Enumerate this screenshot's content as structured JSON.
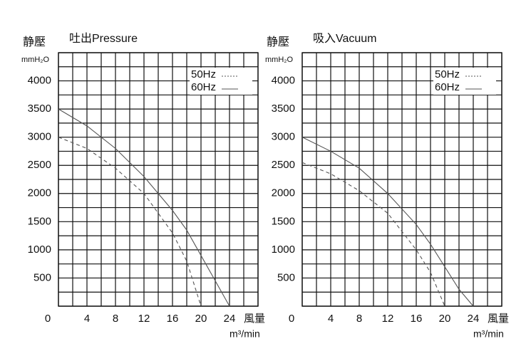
{
  "chart_data": [
    {
      "type": "line",
      "title": "吐出Pressure",
      "y_label": "静壓",
      "y_unit": "mmH₂O",
      "x_label": "風量",
      "x_unit": "m³/min",
      "x": [
        0,
        4,
        8,
        12,
        16,
        18,
        20,
        22,
        24
      ],
      "series": [
        {
          "name": "50Hz",
          "color": "#555555",
          "linestyle": "dashed",
          "values": [
            3000,
            2800,
            2450,
            2000,
            1300,
            800,
            0,
            null,
            null
          ]
        },
        {
          "name": "60Hz",
          "color": "#555555",
          "linestyle": "solid",
          "values": [
            3500,
            3200,
            2800,
            2300,
            1700,
            1350,
            900,
            450,
            0
          ]
        }
      ],
      "xlim": [
        0,
        28
      ],
      "ylim": [
        0,
        4500
      ],
      "xticks": [
        4,
        8,
        12,
        16,
        20,
        24
      ],
      "yticks": [
        0,
        500,
        1000,
        1500,
        2000,
        2500,
        3000,
        3500,
        4000
      ],
      "grid": true,
      "legend": "upper right"
    },
    {
      "type": "line",
      "title": "吸入Vacuum",
      "y_label": "静壓",
      "y_unit": "mmH₂O",
      "x_label": "風量",
      "x_unit": "m³/min",
      "x": [
        0,
        4,
        8,
        12,
        16,
        18,
        20,
        22,
        24
      ],
      "series": [
        {
          "name": "50Hz",
          "color": "#555555",
          "linestyle": "dashed",
          "values": [
            2550,
            2350,
            2050,
            1650,
            1000,
            600,
            0,
            null,
            null
          ]
        },
        {
          "name": "60Hz",
          "color": "#555555",
          "linestyle": "solid",
          "values": [
            3000,
            2750,
            2450,
            2000,
            1450,
            1100,
            700,
            300,
            0
          ]
        }
      ],
      "xlim": [
        0,
        28
      ],
      "ylim": [
        0,
        4500
      ],
      "xticks": [
        4,
        8,
        12,
        16,
        20,
        24
      ],
      "yticks": [
        0,
        500,
        1000,
        1500,
        2000,
        2500,
        3000,
        3500,
        4000
      ],
      "grid": true,
      "legend": "upper right"
    }
  ]
}
